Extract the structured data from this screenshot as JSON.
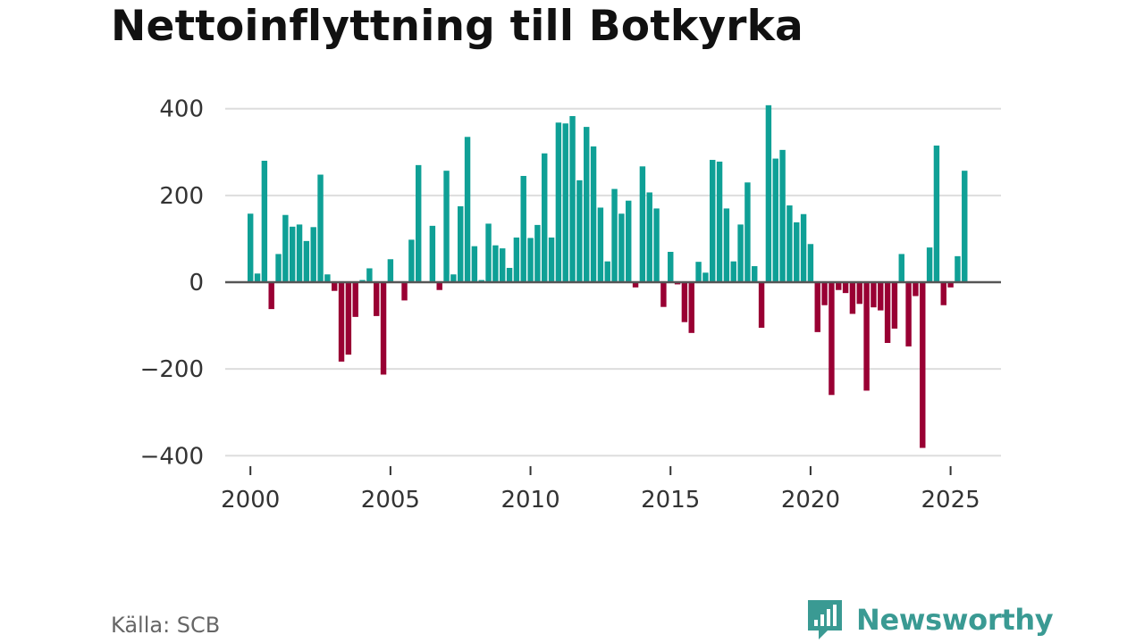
{
  "title": "Nettoinflyttning till Botkyrka",
  "source": "Källa: SCB",
  "brand": "Newsworthy",
  "colors": {
    "positive": "#0fa096",
    "negative": "#990033",
    "grid": "#dddddd",
    "zero": "#555555",
    "brand": "#3a9a93"
  },
  "chart_data": {
    "type": "bar",
    "title": "Nettoinflyttning till Botkyrka",
    "xlabel": "",
    "ylabel": "",
    "ylim": [
      -420,
      420
    ],
    "xlim": [
      1999.1,
      2026.8
    ],
    "yticks": [
      400,
      200,
      0,
      -200,
      -400
    ],
    "ytick_labels": [
      "400",
      "200",
      "0",
      "−200",
      "−400"
    ],
    "xticks": [
      2000,
      2005,
      2010,
      2015,
      2020,
      2025
    ],
    "grid": true,
    "legend": "none",
    "x_start": 2000.0,
    "x_step": 0.25,
    "values": [
      158,
      20,
      280,
      -62,
      65,
      155,
      128,
      133,
      95,
      127,
      248,
      18,
      -20,
      -183,
      -167,
      -80,
      5,
      32,
      -78,
      -213,
      53,
      0,
      -42,
      98,
      270,
      0,
      130,
      -18,
      257,
      18,
      175,
      335,
      83,
      5,
      135,
      85,
      78,
      33,
      103,
      245,
      102,
      132,
      297,
      103,
      368,
      366,
      383,
      235,
      358,
      313,
      172,
      48,
      215,
      158,
      188,
      -12,
      267,
      207,
      170,
      -57,
      70,
      -5,
      -92,
      -117,
      47,
      22,
      282,
      278,
      170,
      48,
      133,
      230,
      37,
      -105,
      408,
      285,
      305,
      177,
      138,
      157,
      88,
      -115,
      -53,
      -260,
      -18,
      -25,
      -73,
      -50,
      -250,
      -58,
      -65,
      -140,
      -107,
      65,
      -148,
      -32,
      -382,
      80,
      315,
      -53,
      -12,
      60,
      257
    ]
  }
}
